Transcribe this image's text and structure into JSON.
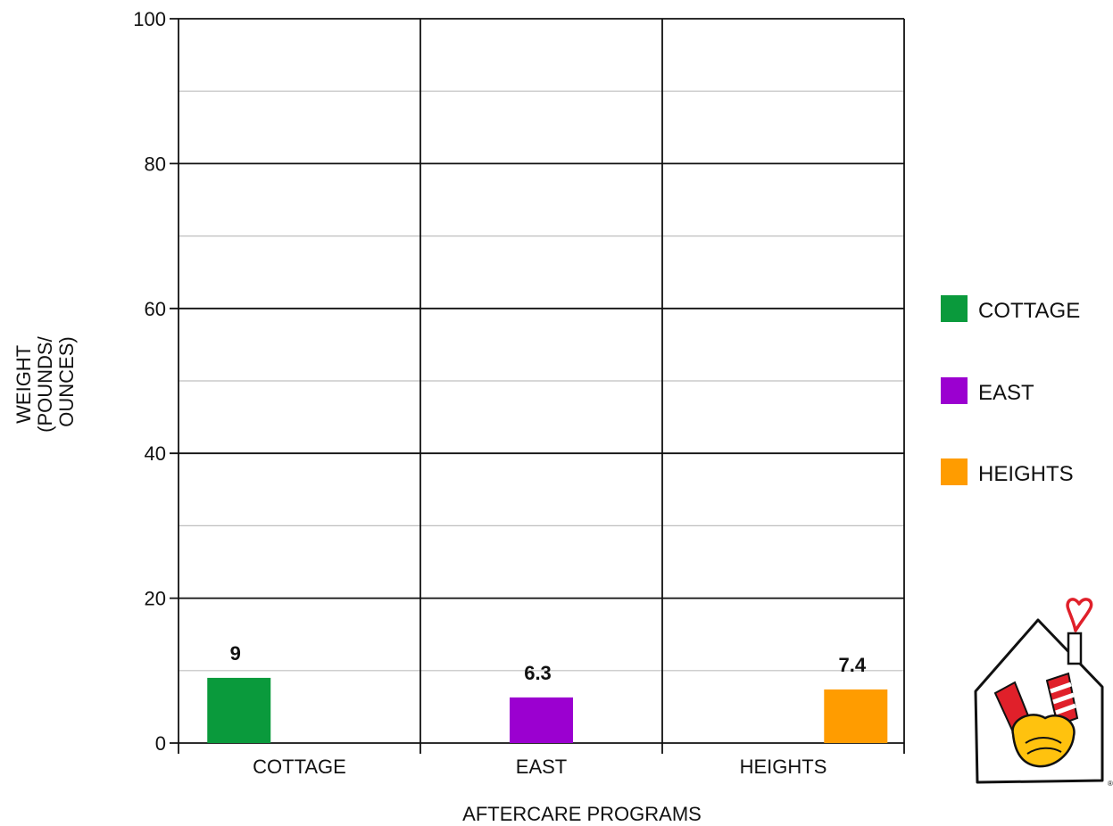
{
  "chart_data": {
    "type": "bar",
    "categories": [
      "COTTAGE",
      "EAST",
      "HEIGHTS"
    ],
    "values": [
      9,
      6.3,
      7.4
    ],
    "value_labels": [
      "9",
      "6.3",
      "7.4"
    ],
    "colors": [
      "#0a9a3c",
      "#9b00d0",
      "#ff9c00"
    ],
    "xlabel": "AFTERCARE PROGRAMS",
    "ylabel_lines": [
      "WEIGHT",
      "(POUNDS/",
      "OUNCES)"
    ],
    "ylim": [
      0,
      100
    ],
    "yticks": [
      0,
      20,
      40,
      60,
      80,
      100
    ],
    "minor_step": 10,
    "grid": true,
    "legend": {
      "placement": "right",
      "items": [
        {
          "label": "COTTAGE",
          "color": "#0a9a3c"
        },
        {
          "label": "EAST",
          "color": "#9b00d0"
        },
        {
          "label": "HEIGHTS",
          "color": "#ff9c00"
        }
      ]
    }
  },
  "logo": {
    "icon": "house-hands-heart-logo"
  }
}
